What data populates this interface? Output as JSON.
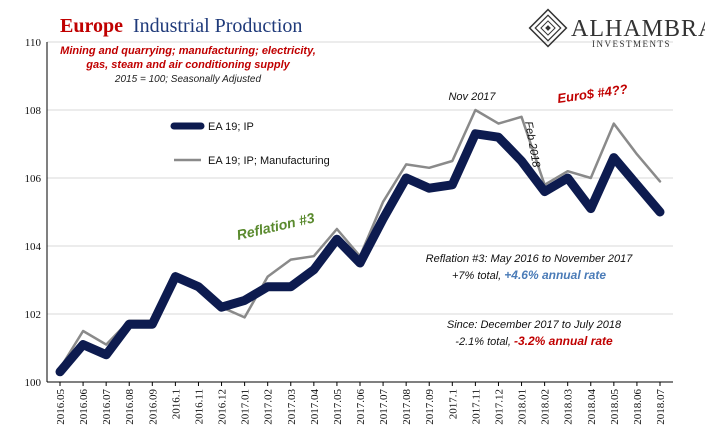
{
  "chart_data": {
    "type": "line",
    "title_part1": "Europe",
    "title_part2": "Industrial Production",
    "subtitle_lines": [
      "Mining and quarrying; manufacturing; electricity,",
      "gas, steam and air conditioning supply"
    ],
    "subtitle_note": "2015 = 100; Seasonally Adjusted",
    "ylim": [
      100,
      110
    ],
    "yticks": [
      "100",
      "102",
      "104",
      "106",
      "108",
      "110"
    ],
    "grid": true,
    "categories": [
      "2016.05",
      "2016.06",
      "2016.07",
      "2016.08",
      "2016.09",
      "2016.1",
      "2016.11",
      "2016.12",
      "2017.01",
      "2017.02",
      "2017.03",
      "2017.04",
      "2017.05",
      "2017.06",
      "2017.07",
      "2017.08",
      "2017.09",
      "2017.1",
      "2017.11",
      "2017.12",
      "2018.01",
      "2018.02",
      "2018.03",
      "2018.04",
      "2018.05",
      "2018.06",
      "2018.07"
    ],
    "series": [
      {
        "name": "EA 19; IP",
        "color": "#0d1b4f",
        "values": [
          100.3,
          101.1,
          100.8,
          101.7,
          101.7,
          103.1,
          102.8,
          102.2,
          102.4,
          102.8,
          102.8,
          103.3,
          104.2,
          103.5,
          104.8,
          106.0,
          105.7,
          105.8,
          107.3,
          107.2,
          106.5,
          105.6,
          106.0,
          105.1,
          106.6,
          105.8,
          105.0
        ]
      },
      {
        "name": "EA 19; IP; Manufacturing",
        "color": "#8a8a8a",
        "values": [
          100.4,
          101.5,
          101.1,
          101.8,
          101.8,
          103.2,
          102.7,
          102.2,
          101.9,
          103.1,
          103.6,
          103.7,
          104.5,
          103.7,
          105.3,
          106.4,
          106.3,
          106.5,
          108.0,
          107.6,
          107.8,
          105.8,
          106.2,
          106.0,
          107.6,
          106.7,
          105.9
        ]
      }
    ],
    "annotations": {
      "nov2017": "Nov 2017",
      "feb2018": "Feb 2018",
      "euro": "Euro$ #4??",
      "reflation": "Reflation #3",
      "reflation_line1": "Reflation #3: May 2016 to November 2017",
      "reflation_line2a": "+7% total, ",
      "reflation_line2b": "+4.6% annual rate",
      "since_line1": "Since: December 2017 to July 2018",
      "since_line2a": "-2.1% total, ",
      "since_line2b": "-3.2% annual rate"
    },
    "logo": {
      "name": "ALHAMBRA",
      "tagline": "INVESTMENTS"
    }
  }
}
